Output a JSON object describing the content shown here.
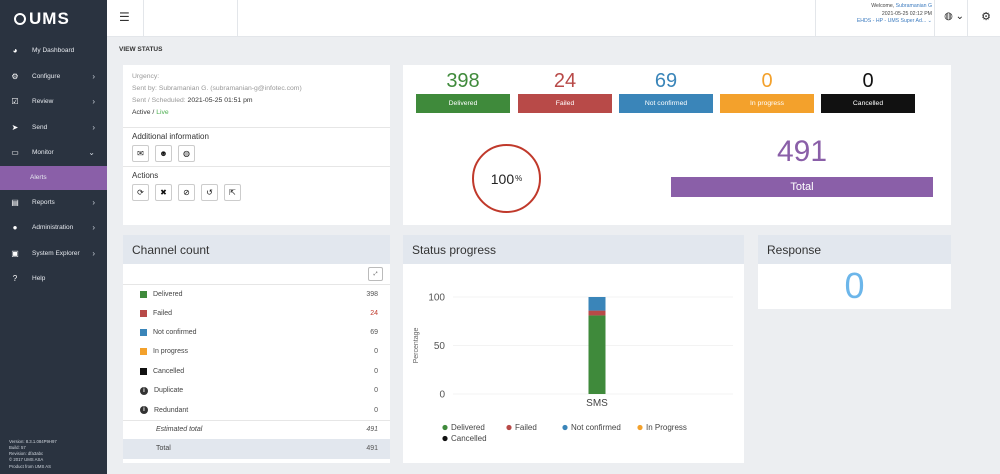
{
  "logo": {
    "text": "UMS"
  },
  "sidebar": {
    "items": [
      {
        "icon": "dashboard-icon",
        "glyph": "◕",
        "label": "My Dashboard",
        "chevron": ""
      },
      {
        "icon": "cogs-icon",
        "glyph": "⚙",
        "label": "Configure",
        "chevron": "›"
      },
      {
        "icon": "check-square-icon",
        "glyph": "☑",
        "label": "Review",
        "chevron": "›"
      },
      {
        "icon": "send-icon",
        "glyph": "➤",
        "label": "Send",
        "chevron": "›"
      },
      {
        "icon": "monitor-icon",
        "glyph": "▭",
        "label": "Monitor",
        "chevron": "⌄"
      },
      {
        "icon": "",
        "glyph": "",
        "label": "Alerts",
        "chevron": ""
      },
      {
        "icon": "reports-icon",
        "glyph": "▤",
        "label": "Reports",
        "chevron": "›"
      },
      {
        "icon": "user-icon",
        "glyph": "●",
        "label": "Administration",
        "chevron": "›"
      },
      {
        "icon": "explorer-icon",
        "glyph": "▣",
        "label": "System Explorer",
        "chevron": "›"
      },
      {
        "icon": "help-icon",
        "glyph": "?",
        "label": "Help",
        "chevron": ""
      }
    ],
    "footer": [
      "Version: 8.3.1.084P9H97",
      "Build: 57",
      "Revision: dfa3abc",
      "© 2017 UMS ASA",
      "Product from UMS AS"
    ]
  },
  "topbar": {
    "welcome_prefix": "Welcome, ",
    "user_name": "Subramanian G",
    "datetime": "2021-05-25 02:12 PM",
    "org": "EHDS - HP - UMS Super Ad... ⌄"
  },
  "page": {
    "title": "VIEW STATUS"
  },
  "details": {
    "urgency": "Urgency:",
    "sent_by": "Sent by: Subramanian G. (subramanian-g@infotec.com)",
    "scheduled_label": "Sent / Scheduled: ",
    "scheduled_value": "2021-05-25 01:51 pm",
    "active_label": "Active / ",
    "active_value": "Live",
    "additional_title": "Additional information",
    "actions_title": "Actions"
  },
  "stats": {
    "items": [
      {
        "value": "398",
        "label": "Delivered",
        "color": "#3f8a3b"
      },
      {
        "value": "24",
        "label": "Failed",
        "color": "#b84a48"
      },
      {
        "value": "69",
        "label": "Not confirmed",
        "color": "#3a85b9"
      },
      {
        "value": "0",
        "label": "In progress",
        "color": "#f3a12c"
      },
      {
        "value": "0",
        "label": "Cancelled",
        "color": "#111111"
      }
    ],
    "percent": "100",
    "percent_sign": "%",
    "total_value": "491",
    "total_label": "Total"
  },
  "channel": {
    "title": "Channel count",
    "expand_label": "⤢",
    "rows": [
      {
        "label": "Delivered",
        "value": "398",
        "color": "#3f8a3b"
      },
      {
        "label": "Failed",
        "value": "24",
        "color": "#b84a48"
      },
      {
        "label": "Not confirmed",
        "value": "69",
        "color": "#3a85b9"
      },
      {
        "label": "In progress",
        "value": "0",
        "color": "#f3a12c"
      },
      {
        "label": "Cancelled",
        "value": "0",
        "color": "#111111"
      },
      {
        "label": "Duplicate",
        "value": "0",
        "color": "info"
      },
      {
        "label": "Redundant",
        "value": "0",
        "color": "info"
      }
    ],
    "estimated_label": "Estimated total",
    "estimated_value": "491",
    "total_label": "Total",
    "total_value": "491"
  },
  "progress": {
    "title": "Status progress"
  },
  "response": {
    "title": "Response",
    "value": "0"
  },
  "chart_data": {
    "type": "bar",
    "stacked": true,
    "categories": [
      "SMS"
    ],
    "ylabel": "Percentage",
    "ylim": [
      0,
      100
    ],
    "yticks": [
      0,
      50,
      100
    ],
    "series": [
      {
        "name": "Delivered",
        "values": [
          81
        ],
        "color": "#3f8a3b"
      },
      {
        "name": "Failed",
        "values": [
          5
        ],
        "color": "#b84a48"
      },
      {
        "name": "Not confirmed",
        "values": [
          14
        ],
        "color": "#3a85b9"
      },
      {
        "name": "In Progress",
        "values": [
          0
        ],
        "color": "#f3a12c"
      },
      {
        "name": "Cancelled",
        "values": [
          0
        ],
        "color": "#111111"
      }
    ]
  }
}
